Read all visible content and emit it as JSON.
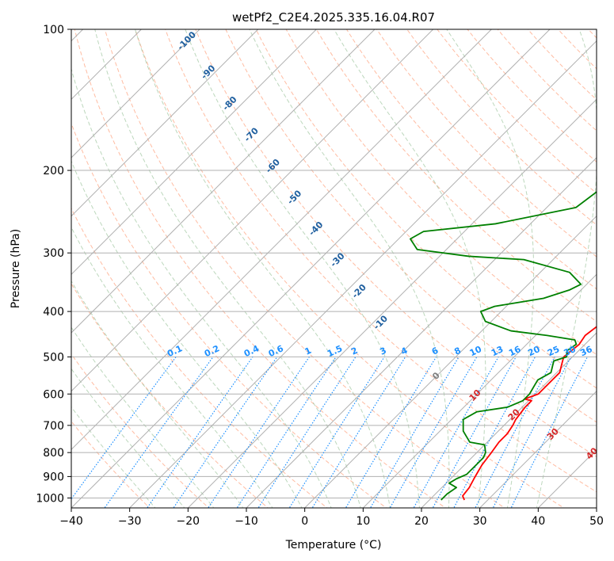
{
  "chart_data": {
    "type": "line",
    "title": "wetPf2_C2E4.2025.335.16.04.R07",
    "xlabel": "Temperature (°C)",
    "ylabel": "Pressure (hPa)",
    "xlim": [
      -40,
      50
    ],
    "ylim": [
      1050,
      100
    ],
    "y_scale": "log",
    "x_ticks": [
      "−40",
      "−30",
      "−20",
      "−10",
      "0",
      "10",
      "20",
      "30",
      "40",
      "50"
    ],
    "x_tick_values": [
      -40,
      -30,
      -20,
      -10,
      0,
      10,
      20,
      30,
      40,
      50
    ],
    "y_ticks": [
      "100",
      "200",
      "300",
      "400",
      "500",
      "600",
      "700",
      "800",
      "900",
      "1000"
    ],
    "y_tick_values": [
      100,
      200,
      300,
      400,
      500,
      600,
      700,
      800,
      900,
      1000
    ],
    "grid": true,
    "colors": {
      "temperature": "#ff0000",
      "dewpoint": "#008000",
      "isotherm_label": "#1f5f9f",
      "mixing_ratio": "#1e90ff",
      "isotherm_zero": "#808080",
      "isotherm_warm": "#d62728",
      "dry_adiabat": "#ffa07a",
      "moist_adiabat": "#8fbc8f"
    },
    "series": [
      {
        "name": "Temperature",
        "points": [
          [
            26,
            1010
          ],
          [
            25,
            990
          ],
          [
            24.7,
            950
          ],
          [
            24,
            910
          ],
          [
            23.5,
            880
          ],
          [
            23,
            850
          ],
          [
            22.7,
            820
          ],
          [
            22.5,
            800
          ],
          [
            22,
            760
          ],
          [
            22,
            730
          ],
          [
            21.5,
            700
          ],
          [
            21,
            680
          ],
          [
            20.5,
            640
          ],
          [
            20.5,
            620
          ],
          [
            19,
            615
          ],
          [
            20.5,
            600
          ],
          [
            20.5,
            560
          ],
          [
            20.5,
            540
          ],
          [
            19.5,
            520
          ],
          [
            18.5,
            500
          ],
          [
            19,
            470
          ],
          [
            18.5,
            450
          ],
          [
            19,
            430
          ],
          [
            18.5,
            410
          ],
          [
            17.5,
            380
          ],
          [
            16.5,
            360
          ],
          [
            15,
            340
          ],
          [
            14.2,
            320
          ],
          [
            13.5,
            300
          ],
          [
            12,
            270
          ],
          [
            10,
            240
          ],
          [
            8,
            215
          ],
          [
            6,
            195
          ],
          [
            4.5,
            180
          ],
          [
            3.5,
            165
          ],
          [
            2,
            150
          ],
          [
            0,
            135
          ],
          [
            0,
            120
          ],
          [
            1,
            110
          ],
          [
            1,
            105
          ],
          [
            2,
            100
          ]
        ]
      },
      {
        "name": "Dewpoint",
        "points": [
          [
            22,
            1010
          ],
          [
            22,
            980
          ],
          [
            22.5,
            950
          ],
          [
            20.5,
            930
          ],
          [
            21,
            910
          ],
          [
            22,
            890
          ],
          [
            22,
            860
          ],
          [
            22,
            820
          ],
          [
            21.5,
            800
          ],
          [
            20,
            770
          ],
          [
            17,
            760
          ],
          [
            14,
            720
          ],
          [
            12,
            680
          ],
          [
            13,
            655
          ],
          [
            17.5,
            640
          ],
          [
            19,
            620
          ],
          [
            19,
            600
          ],
          [
            18.5,
            580
          ],
          [
            18,
            560
          ],
          [
            19,
            540
          ],
          [
            18,
            520
          ],
          [
            17.5,
            510
          ],
          [
            19,
            500
          ],
          [
            18,
            485
          ],
          [
            18.5,
            470
          ],
          [
            17.5,
            460
          ],
          [
            12,
            450
          ],
          [
            5,
            440
          ],
          [
            -1,
            420
          ],
          [
            -3.5,
            400
          ],
          [
            -2,
            390
          ],
          [
            5,
            375
          ],
          [
            8,
            360
          ],
          [
            9,
            350
          ],
          [
            5,
            330
          ],
          [
            -5,
            310
          ],
          [
            -15,
            305
          ],
          [
            -25,
            295
          ],
          [
            -28,
            280
          ],
          [
            -27,
            270
          ],
          [
            -16,
            260
          ],
          [
            -5,
            240
          ],
          [
            -4,
            220
          ],
          [
            -1.5,
            200
          ],
          [
            -1,
            185
          ],
          [
            -2,
            170
          ],
          [
            -5.5,
            150
          ],
          [
            -4,
            140
          ],
          [
            -1,
            130
          ],
          [
            -1,
            115
          ],
          [
            -2,
            108
          ],
          [
            -1.5,
            100
          ]
        ]
      }
    ],
    "isotherm_labels": [
      "-100",
      "-90",
      "-80",
      "-70",
      "-60",
      "-50",
      "-40",
      "-30",
      "-20",
      "-10",
      "0",
      "10",
      "20",
      "30",
      "40"
    ],
    "isotherm_label_values": [
      -100,
      -90,
      -80,
      -70,
      -60,
      -50,
      -40,
      -30,
      -20,
      -10,
      0,
      10,
      20,
      30,
      40
    ],
    "mixing_ratio_labels": [
      "0.1",
      "0.2",
      "0.4",
      "0.6",
      "1",
      "1.5",
      "2",
      "3",
      "4",
      "6",
      "8",
      "10",
      "13",
      "16",
      "20",
      "25",
      "30",
      "36"
    ],
    "mixing_ratio_values": [
      0.1,
      0.2,
      0.4,
      0.6,
      1,
      1.5,
      2,
      3,
      4,
      6,
      8,
      10,
      13,
      16,
      20,
      25,
      30,
      36
    ]
  }
}
